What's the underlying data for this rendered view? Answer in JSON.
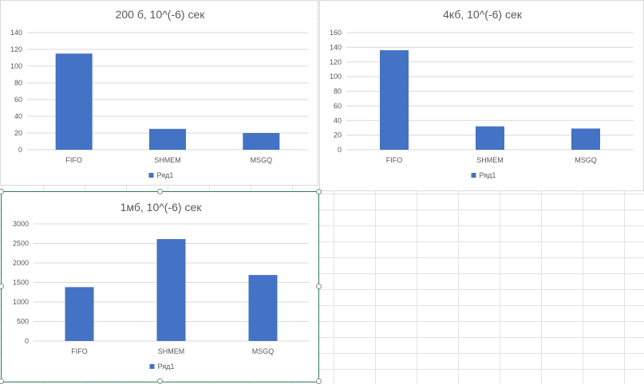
{
  "colors": {
    "bar": "#4472C4",
    "gridline": "#d9d9d9",
    "axis_text": "#595959",
    "title_text": "#595959",
    "selection_border": "#2e7d4f"
  },
  "chart_data": [
    {
      "type": "bar",
      "title": "200 б, 10^(-6) сек",
      "categories": [
        "FIFO",
        "SHMEM",
        "MSGQ"
      ],
      "series": [
        {
          "name": "Ряд1",
          "values": [
            115,
            25,
            20
          ]
        }
      ],
      "ylim": [
        0,
        140
      ],
      "yticks": [
        0,
        20,
        40,
        60,
        80,
        100,
        120,
        140
      ],
      "grid": true,
      "legend": "bottom"
    },
    {
      "type": "bar",
      "title": "4кб, 10^(-6) сек",
      "categories": [
        "FIFO",
        "SHMEM",
        "MSGQ"
      ],
      "series": [
        {
          "name": "Ряд1",
          "values": [
            136,
            32,
            29
          ]
        }
      ],
      "ylim": [
        0,
        160
      ],
      "yticks": [
        0,
        20,
        40,
        60,
        80,
        100,
        120,
        140,
        160
      ],
      "grid": true,
      "legend": "bottom"
    },
    {
      "type": "bar",
      "title": "1мб, 10^(-6) сек",
      "categories": [
        "FIFO",
        "SHMEM",
        "MSGQ"
      ],
      "series": [
        {
          "name": "Ряд1",
          "values": [
            1380,
            2610,
            1690
          ]
        }
      ],
      "ylim": [
        0,
        3000
      ],
      "yticks": [
        0,
        500,
        1000,
        1500,
        2000,
        2500,
        3000
      ],
      "grid": true,
      "legend": "bottom"
    }
  ]
}
